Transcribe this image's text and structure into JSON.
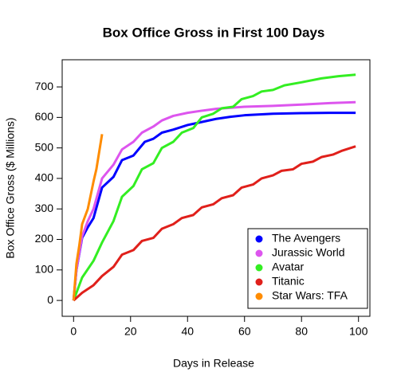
{
  "chart_data": {
    "type": "line",
    "title": "Box Office Gross in First 100 Days",
    "x_label": "Days in Release",
    "y_label": "Box Office Gross ($ Millions)",
    "xlim": [
      -4,
      104
    ],
    "ylim": [
      -52,
      789
    ],
    "xticks": [
      0,
      20,
      40,
      60,
      80,
      100
    ],
    "yticks": [
      0,
      100,
      200,
      300,
      400,
      500,
      600,
      700
    ],
    "legend": "bottom-right",
    "series": [
      {
        "name": "The Avengers",
        "color": "#0000ff",
        "x": [
          0,
          1,
          3,
          5,
          7,
          10,
          14,
          17,
          21,
          25,
          28,
          31,
          35,
          40,
          45,
          50,
          55,
          60,
          70,
          80,
          90,
          99
        ],
        "values": [
          0,
          100,
          205,
          240,
          270,
          370,
          405,
          460,
          475,
          520,
          530,
          550,
          560,
          575,
          585,
          595,
          602,
          607,
          612,
          614,
          615,
          615
        ]
      },
      {
        "name": "Jurassic World",
        "color": "#dd55ee",
        "x": [
          0,
          1,
          3,
          5,
          7,
          10,
          14,
          17,
          21,
          24,
          28,
          31,
          35,
          40,
          45,
          50,
          60,
          70,
          80,
          90,
          99
        ],
        "values": [
          0,
          100,
          210,
          260,
          300,
          400,
          445,
          495,
          520,
          550,
          570,
          590,
          605,
          615,
          622,
          628,
          635,
          638,
          642,
          647,
          650
        ]
      },
      {
        "name": "Avatar",
        "color": "#33ee22",
        "x": [
          0,
          3,
          7,
          10,
          14,
          17,
          21,
          24,
          28,
          31,
          35,
          38,
          42,
          45,
          49,
          52,
          56,
          59,
          63,
          66,
          70,
          74,
          80,
          87,
          93,
          99
        ],
        "values": [
          0,
          75,
          130,
          190,
          260,
          340,
          375,
          430,
          450,
          500,
          520,
          550,
          565,
          600,
          612,
          630,
          635,
          660,
          670,
          685,
          690,
          705,
          715,
          728,
          735,
          740
        ]
      },
      {
        "name": "Titanic",
        "color": "#e0201b",
        "x": [
          0,
          3,
          7,
          10,
          14,
          17,
          21,
          24,
          28,
          31,
          35,
          38,
          42,
          45,
          49,
          52,
          56,
          59,
          63,
          66,
          70,
          73,
          77,
          80,
          84,
          87,
          91,
          94,
          99
        ],
        "values": [
          0,
          25,
          50,
          80,
          110,
          150,
          165,
          195,
          205,
          235,
          250,
          270,
          280,
          305,
          315,
          335,
          345,
          370,
          380,
          400,
          410,
          425,
          430,
          448,
          455,
          470,
          478,
          490,
          505
        ]
      },
      {
        "name": "Star Wars: TFA",
        "color": "#ff8c00",
        "x": [
          0,
          1,
          2,
          3,
          5,
          7,
          8,
          10
        ],
        "values": [
          0,
          120,
          180,
          250,
          300,
          390,
          430,
          545
        ]
      }
    ]
  }
}
